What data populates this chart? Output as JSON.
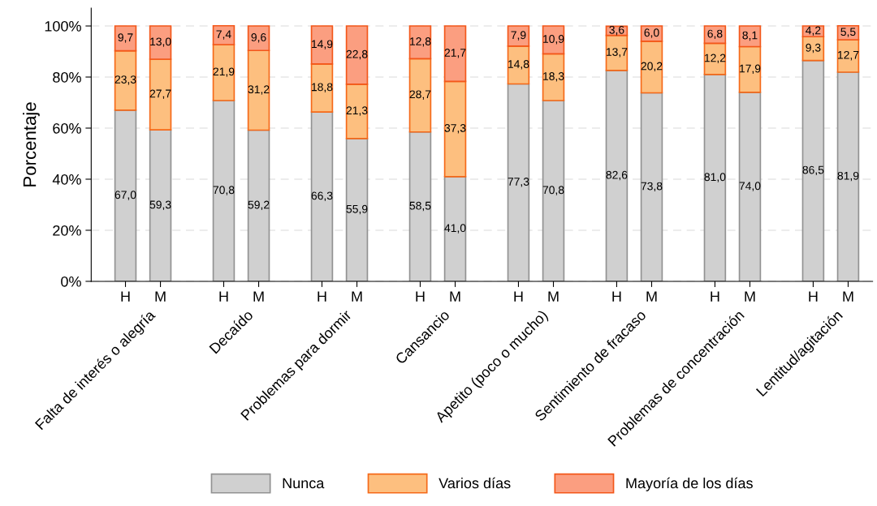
{
  "chart_data": {
    "type": "bar",
    "stacked": true,
    "ylabel": "Porcentaje",
    "categories": [
      "H",
      "M",
      "H",
      "M",
      "H",
      "M",
      "H",
      "M",
      "H",
      "M",
      "H",
      "M",
      "H",
      "M",
      "H",
      "M"
    ],
    "annotations": [
      "Falta de interés o alegría",
      "Decaído",
      "Problemas para dormir",
      "Cansancio",
      "Apetito (poco o mucho)",
      "Sentimiento de fracaso",
      "Problemas de concentración",
      "Lentitud/agitación"
    ],
    "series": [
      {
        "name": "Nunca",
        "color": "#d0d0d0",
        "values": [
          67.0,
          59.3,
          70.8,
          59.2,
          66.3,
          55.9,
          58.5,
          41.0,
          77.3,
          70.8,
          82.6,
          73.8,
          81.0,
          74.0,
          86.5,
          81.9
        ],
        "value_labels": [
          "67,0",
          "59,3",
          "70,8",
          "59,2",
          "66,3",
          "55,9",
          "58,5",
          "41,0",
          "77,3",
          "70,8",
          "82,6",
          "73,8",
          "81,0",
          "74,0",
          "86,5",
          "81,9"
        ]
      },
      {
        "name": "Varios días",
        "color": "#fdbf7f",
        "values": [
          23.3,
          27.7,
          21.9,
          31.2,
          18.8,
          21.3,
          28.7,
          37.3,
          14.8,
          18.3,
          13.7,
          20.2,
          12.2,
          17.9,
          9.3,
          12.7
        ],
        "value_labels": [
          "23,3",
          "27,7",
          "21,9",
          "31,2",
          "18,8",
          "21,3",
          "28,7",
          "37,3",
          "14,8",
          "18,3",
          "13,7",
          "20,2",
          "12,2",
          "17,9",
          "9,3",
          "12,7"
        ]
      },
      {
        "name": "Mayoría de los días",
        "color": "#fb9e80",
        "values": [
          9.7,
          13.0,
          7.4,
          9.6,
          14.9,
          22.8,
          12.8,
          21.7,
          7.9,
          10.9,
          3.6,
          6.0,
          6.8,
          8.1,
          4.2,
          5.5
        ],
        "value_labels": [
          "9,7",
          "13,0",
          "7,4",
          "9,6",
          "14,9",
          "22,8",
          "12,8",
          "21,7",
          "7,9",
          "10,9",
          "3,6",
          "6,0",
          "6,8",
          "8,1",
          "4,2",
          "5,5"
        ]
      }
    ],
    "ylim": [
      0,
      107
    ],
    "yticks": [
      {
        "value": 0,
        "label": "0%"
      },
      {
        "value": 20,
        "label": "20%"
      },
      {
        "value": 40,
        "label": "40%"
      },
      {
        "value": 60,
        "label": "60%"
      },
      {
        "value": 80,
        "label": "80%"
      },
      {
        "value": 100,
        "label": "100%"
      }
    ],
    "grid": "y",
    "legend": "bottom"
  }
}
